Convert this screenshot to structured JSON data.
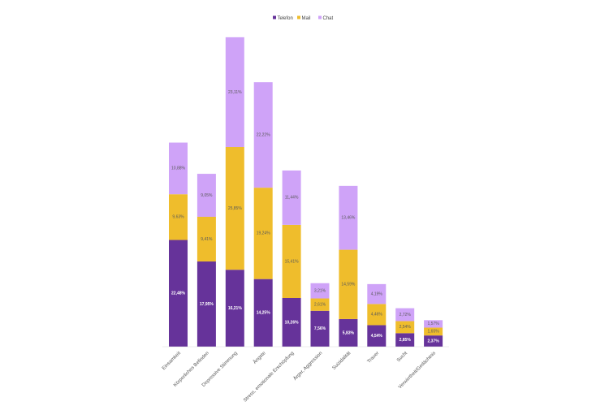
{
  "chart_data": {
    "type": "bar",
    "stacked": true,
    "title": "",
    "xlabel": "",
    "ylabel": "",
    "ylim": [
      0,
      66
    ],
    "grid": false,
    "legend_position": "top-center",
    "categories": [
      "Einsamkeit",
      "Körperliches Befinden",
      "Depressive Stimmung",
      "Ängste",
      "Stress, emotionale Erschöpfung",
      "Ärger, Aggression",
      "Suizidalität",
      "Trauer",
      "Sucht",
      "Verwirrtheit/Gedächtnis"
    ],
    "series": [
      {
        "name": "Telefon",
        "color": "#66339a",
        "values": [
          22.48,
          17.95,
          16.21,
          14.25,
          10.26,
          7.56,
          5.83,
          4.54,
          2.85,
          2.37
        ],
        "labels": [
          "22,48%",
          "17,95%",
          "16,21%",
          "14,25%",
          "10,26%",
          "7,56%",
          "5,83%",
          "4,54%",
          "2,85%",
          "2,37%"
        ]
      },
      {
        "name": "Mail",
        "color": "#efbd2c",
        "values": [
          9.63,
          9.41,
          25.85,
          19.24,
          15.41,
          2.61,
          14.59,
          4.46,
          2.54,
          1.65
        ],
        "labels": [
          "9,63%",
          "9,41%",
          "25,85%",
          "19,24%",
          "15,41%",
          "2,61%",
          "14,59%",
          "4,46%",
          "2,54%",
          "1,65%"
        ]
      },
      {
        "name": "Chat",
        "color": "#cfa3f8",
        "values": [
          10.88,
          9.05,
          23.11,
          22.22,
          11.44,
          3.21,
          13.46,
          4.19,
          2.72,
          1.57
        ],
        "labels": [
          "10,88%",
          "9,05%",
          "23,11%",
          "22,22%",
          "11,44%",
          "3,21%",
          "13,46%",
          "4,19%",
          "2,72%",
          "1,57%"
        ]
      }
    ]
  }
}
